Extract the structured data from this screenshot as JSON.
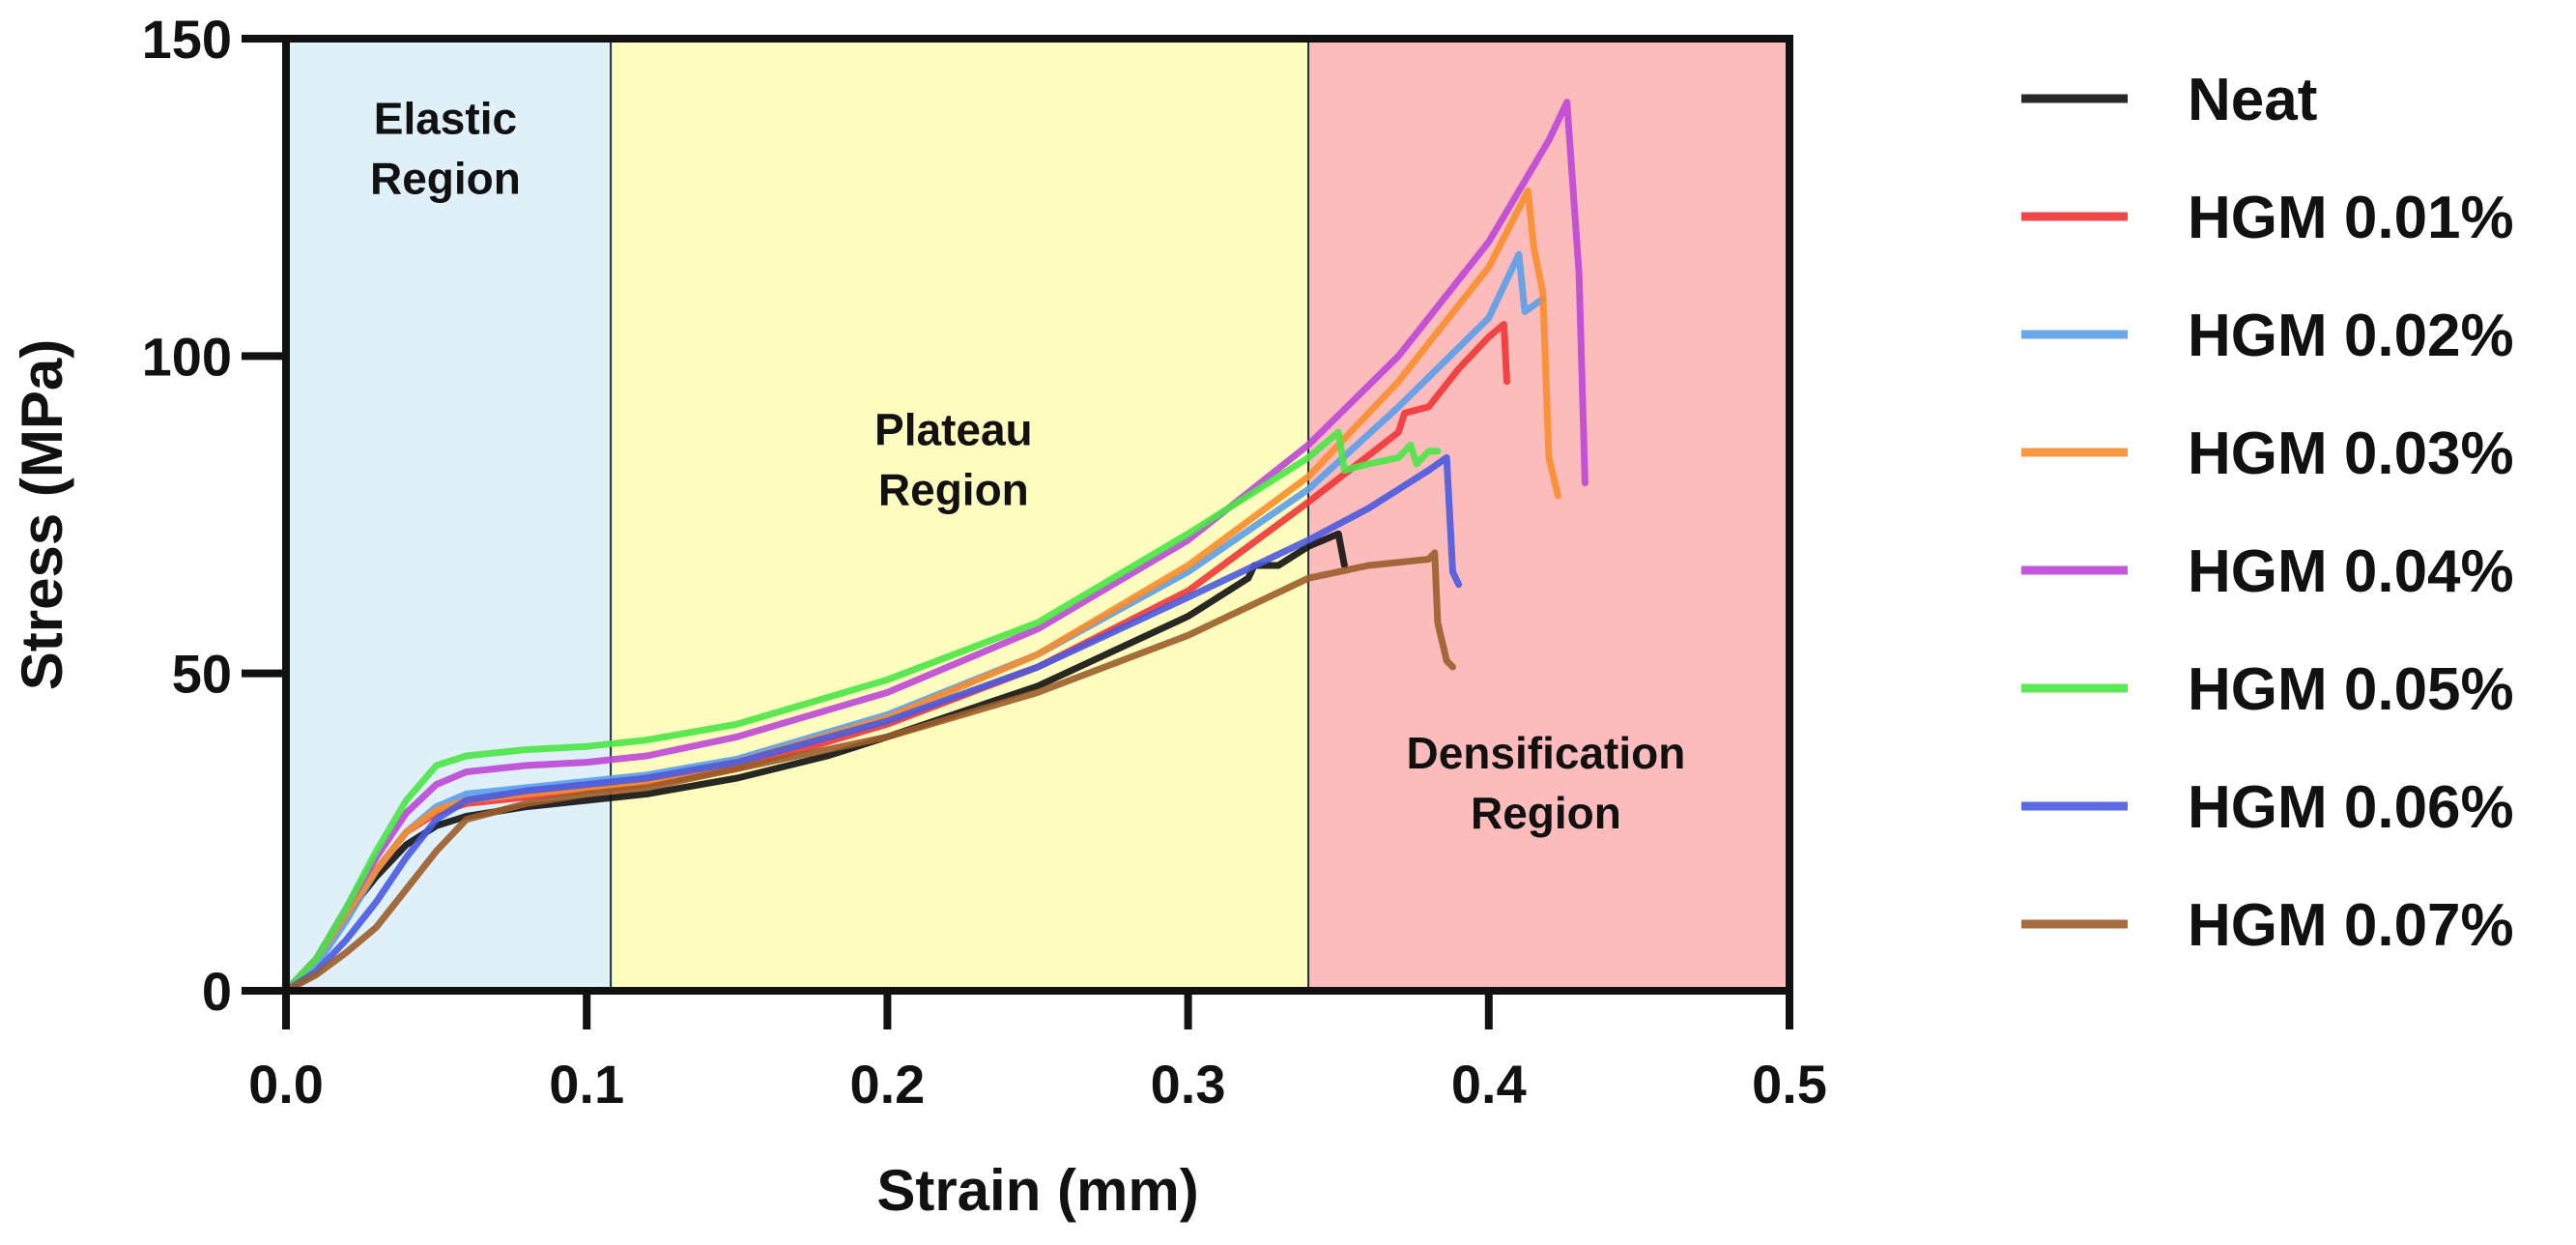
{
  "chart_data": {
    "type": "line",
    "title": "",
    "xlabel": "Strain (mm)",
    "ylabel": "Stress (MPa)",
    "xlim": [
      0,
      0.5
    ],
    "ylim": [
      0,
      150
    ],
    "xticks": [
      0.0,
      0.1,
      0.2,
      0.3,
      0.4,
      0.5
    ],
    "xtick_labels": [
      "0.0",
      "0.1",
      "0.2",
      "0.3",
      "0.4",
      "0.5"
    ],
    "yticks": [
      0,
      50,
      100,
      150
    ],
    "ytick_labels": [
      "0",
      "50",
      "100",
      "150"
    ],
    "grid": false,
    "legend_position": "right",
    "regions": [
      {
        "name": "elastic",
        "label_lines": [
          "Elastic",
          "Region"
        ],
        "x_start": 0.0,
        "x_end": 0.108,
        "color": "#dff0f8",
        "label_x": 0.053,
        "label_y": 135
      },
      {
        "name": "plateau",
        "label_lines": [
          "Plateau",
          "Region"
        ],
        "x_start": 0.108,
        "x_end": 0.34,
        "color": "#fefcbe",
        "label_x": 0.222,
        "label_y": 86
      },
      {
        "name": "densification",
        "label_lines": [
          "Densification",
          "Region"
        ],
        "x_start": 0.34,
        "x_end": 0.5,
        "color": "#fdbcbc",
        "label_x": 0.419,
        "label_y": 35
      }
    ],
    "series": [
      {
        "name": "Neat",
        "color": "#111111",
        "points": [
          [
            0,
            0
          ],
          [
            0.01,
            5
          ],
          [
            0.02,
            12
          ],
          [
            0.03,
            18
          ],
          [
            0.04,
            23
          ],
          [
            0.05,
            26
          ],
          [
            0.06,
            27.5
          ],
          [
            0.08,
            29
          ],
          [
            0.1,
            30
          ],
          [
            0.12,
            31
          ],
          [
            0.15,
            33.5
          ],
          [
            0.18,
            37
          ],
          [
            0.2,
            40
          ],
          [
            0.25,
            48
          ],
          [
            0.3,
            59
          ],
          [
            0.32,
            65
          ],
          [
            0.322,
            67
          ],
          [
            0.33,
            67
          ],
          [
            0.34,
            70
          ],
          [
            0.345,
            71
          ],
          [
            0.35,
            72
          ],
          [
            0.352,
            67
          ]
        ]
      },
      {
        "name": "HGM 0.01%",
        "color": "#f03535",
        "points": [
          [
            0,
            0
          ],
          [
            0.01,
            5
          ],
          [
            0.02,
            12
          ],
          [
            0.03,
            19
          ],
          [
            0.04,
            25
          ],
          [
            0.05,
            28
          ],
          [
            0.06,
            29.5
          ],
          [
            0.08,
            30.5
          ],
          [
            0.1,
            31.5
          ],
          [
            0.12,
            32.5
          ],
          [
            0.15,
            35
          ],
          [
            0.2,
            42
          ],
          [
            0.25,
            51
          ],
          [
            0.3,
            63
          ],
          [
            0.34,
            77
          ],
          [
            0.37,
            88
          ],
          [
            0.372,
            91
          ],
          [
            0.38,
            92
          ],
          [
            0.39,
            98
          ],
          [
            0.4,
            103
          ],
          [
            0.405,
            105
          ],
          [
            0.406,
            96
          ]
        ]
      },
      {
        "name": "HGM 0.02%",
        "color": "#5b9de9",
        "points": [
          [
            0,
            0
          ],
          [
            0.01,
            4
          ],
          [
            0.02,
            11
          ],
          [
            0.03,
            19
          ],
          [
            0.04,
            25
          ],
          [
            0.05,
            29
          ],
          [
            0.06,
            31
          ],
          [
            0.08,
            32
          ],
          [
            0.1,
            33
          ],
          [
            0.12,
            34
          ],
          [
            0.15,
            36.5
          ],
          [
            0.2,
            43.5
          ],
          [
            0.25,
            53
          ],
          [
            0.3,
            66
          ],
          [
            0.34,
            79
          ],
          [
            0.37,
            92
          ],
          [
            0.4,
            106
          ],
          [
            0.41,
            116
          ],
          [
            0.412,
            107
          ],
          [
            0.418,
            109
          ]
        ]
      },
      {
        "name": "HGM 0.03%",
        "color": "#f88d2c",
        "points": [
          [
            0,
            0
          ],
          [
            0.01,
            5
          ],
          [
            0.02,
            12
          ],
          [
            0.03,
            19
          ],
          [
            0.04,
            25
          ],
          [
            0.05,
            28.5
          ],
          [
            0.06,
            30
          ],
          [
            0.08,
            31
          ],
          [
            0.1,
            32
          ],
          [
            0.12,
            33
          ],
          [
            0.15,
            36
          ],
          [
            0.2,
            43
          ],
          [
            0.25,
            53
          ],
          [
            0.3,
            67
          ],
          [
            0.34,
            81
          ],
          [
            0.37,
            96
          ],
          [
            0.4,
            114
          ],
          [
            0.413,
            126
          ],
          [
            0.415,
            117
          ],
          [
            0.418,
            110
          ],
          [
            0.42,
            84
          ],
          [
            0.423,
            78
          ]
        ]
      },
      {
        "name": "HGM 0.04%",
        "color": "#bd47d6",
        "points": [
          [
            0,
            0
          ],
          [
            0.01,
            5
          ],
          [
            0.02,
            13
          ],
          [
            0.03,
            21
          ],
          [
            0.04,
            28
          ],
          [
            0.05,
            32.5
          ],
          [
            0.06,
            34.5
          ],
          [
            0.08,
            35.5
          ],
          [
            0.1,
            36
          ],
          [
            0.12,
            37
          ],
          [
            0.15,
            40
          ],
          [
            0.2,
            47
          ],
          [
            0.25,
            57
          ],
          [
            0.3,
            71
          ],
          [
            0.34,
            86
          ],
          [
            0.37,
            100
          ],
          [
            0.4,
            118
          ],
          [
            0.42,
            134
          ],
          [
            0.426,
            140
          ],
          [
            0.43,
            113
          ],
          [
            0.432,
            80
          ]
        ]
      },
      {
        "name": "HGM 0.05%",
        "color": "#4ae646",
        "points": [
          [
            0,
            0
          ],
          [
            0.01,
            5
          ],
          [
            0.02,
            13
          ],
          [
            0.03,
            22
          ],
          [
            0.04,
            30
          ],
          [
            0.05,
            35.5
          ],
          [
            0.06,
            37
          ],
          [
            0.08,
            38
          ],
          [
            0.1,
            38.5
          ],
          [
            0.12,
            39.5
          ],
          [
            0.15,
            42
          ],
          [
            0.2,
            49
          ],
          [
            0.25,
            58
          ],
          [
            0.3,
            72
          ],
          [
            0.34,
            84
          ],
          [
            0.35,
            88
          ],
          [
            0.352,
            82
          ],
          [
            0.36,
            83
          ],
          [
            0.37,
            84
          ],
          [
            0.374,
            86
          ],
          [
            0.376,
            83
          ],
          [
            0.38,
            85
          ],
          [
            0.383,
            85
          ]
        ]
      },
      {
        "name": "HGM 0.06%",
        "color": "#4a5ae0",
        "points": [
          [
            0,
            0
          ],
          [
            0.01,
            3
          ],
          [
            0.02,
            8
          ],
          [
            0.03,
            14
          ],
          [
            0.04,
            21
          ],
          [
            0.05,
            27
          ],
          [
            0.06,
            30
          ],
          [
            0.08,
            31.5
          ],
          [
            0.1,
            32.5
          ],
          [
            0.12,
            33.5
          ],
          [
            0.15,
            36
          ],
          [
            0.2,
            42.5
          ],
          [
            0.25,
            51
          ],
          [
            0.3,
            62
          ],
          [
            0.34,
            71
          ],
          [
            0.36,
            76
          ],
          [
            0.38,
            82
          ],
          [
            0.386,
            84
          ],
          [
            0.388,
            66
          ],
          [
            0.39,
            64
          ]
        ]
      },
      {
        "name": "HGM 0.07%",
        "color": "#9b5d2a",
        "points": [
          [
            0,
            0
          ],
          [
            0.01,
            2.5
          ],
          [
            0.02,
            6
          ],
          [
            0.03,
            10
          ],
          [
            0.04,
            16
          ],
          [
            0.05,
            22
          ],
          [
            0.06,
            27
          ],
          [
            0.08,
            29.5
          ],
          [
            0.1,
            31
          ],
          [
            0.12,
            32
          ],
          [
            0.15,
            35
          ],
          [
            0.2,
            40
          ],
          [
            0.25,
            47
          ],
          [
            0.3,
            56
          ],
          [
            0.34,
            65
          ],
          [
            0.36,
            67
          ],
          [
            0.37,
            67.5
          ],
          [
            0.38,
            68
          ],
          [
            0.382,
            69
          ],
          [
            0.383,
            58
          ],
          [
            0.386,
            52
          ],
          [
            0.388,
            51
          ]
        ]
      }
    ]
  }
}
